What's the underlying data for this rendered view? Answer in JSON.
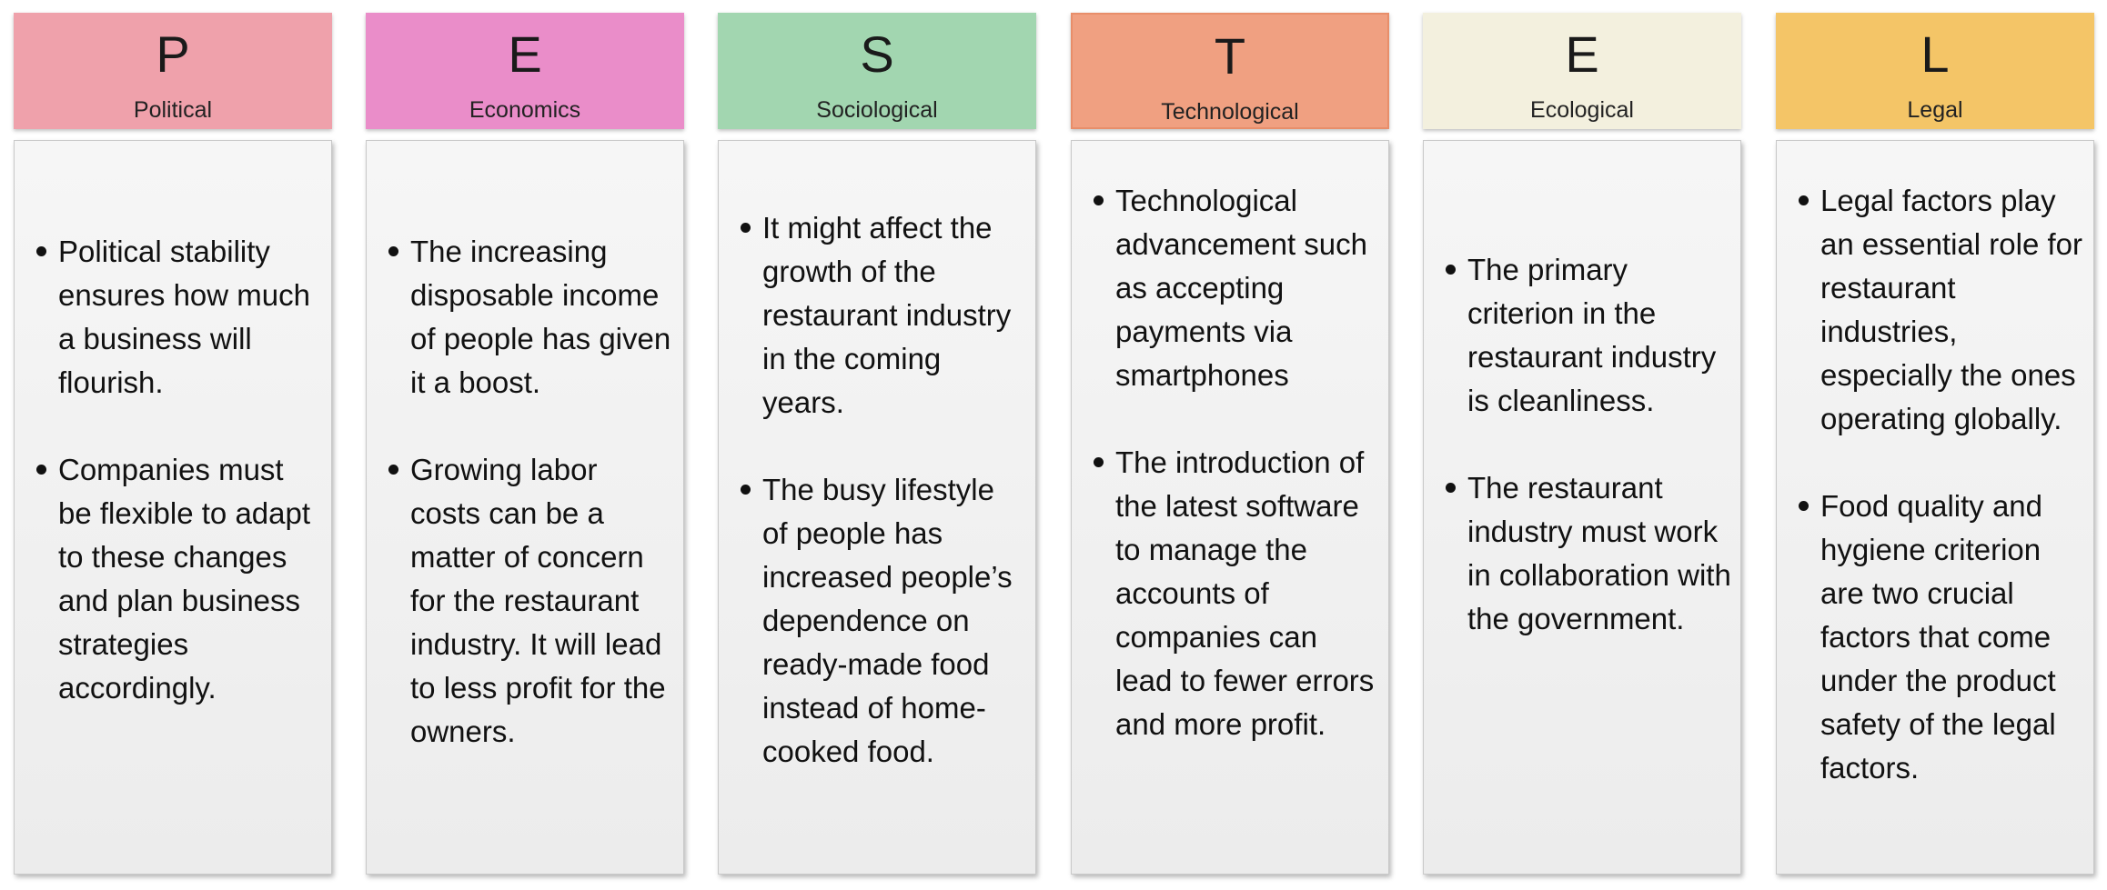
{
  "columns": [
    {
      "letter": "P",
      "title": "Political",
      "color": "#EFA1AB",
      "points": [
        "Political stability ensures how much a business will flourish.",
        "Companies must be flexible to adapt to these changes and plan business strategies accordingly."
      ]
    },
    {
      "letter": "E",
      "title": "Economics",
      "color": "#EA8DC9",
      "points": [
        "The increasing disposable income of people has given it a boost.",
        "Growing labor costs can be a matter of concern for the restaurant industry. It will lead to less profit for the owners."
      ]
    },
    {
      "letter": "S",
      "title": "Sociological",
      "color": "#A2D6B0",
      "points": [
        "It might affect the growth of the restaurant industry in the coming years.",
        "The busy lifestyle of people has increased people’s dependence on ready-made food instead of home-cooked food."
      ]
    },
    {
      "letter": "T",
      "title": "Technological",
      "color": "#F0A081",
      "points": [
        "Technological advancement such as accepting payments via smartphones",
        "The introduction of the latest software to manage the accounts of companies can lead to fewer errors and more profit."
      ]
    },
    {
      "letter": "E",
      "title": "Ecological",
      "color": "#F3F0DE",
      "points": [
        "The primary criterion in the restaurant industry is cleanliness.",
        "The restaurant industry must work in collaboration with the government."
      ]
    },
    {
      "letter": "L",
      "title": "Legal",
      "color": "#F4C567",
      "points": [
        "Legal factors play an essential role for restaurant industries, especially the ones operating globally.",
        "Food quality and hygiene criterion are two crucial factors that come under the product safety of the legal factors."
      ]
    }
  ]
}
